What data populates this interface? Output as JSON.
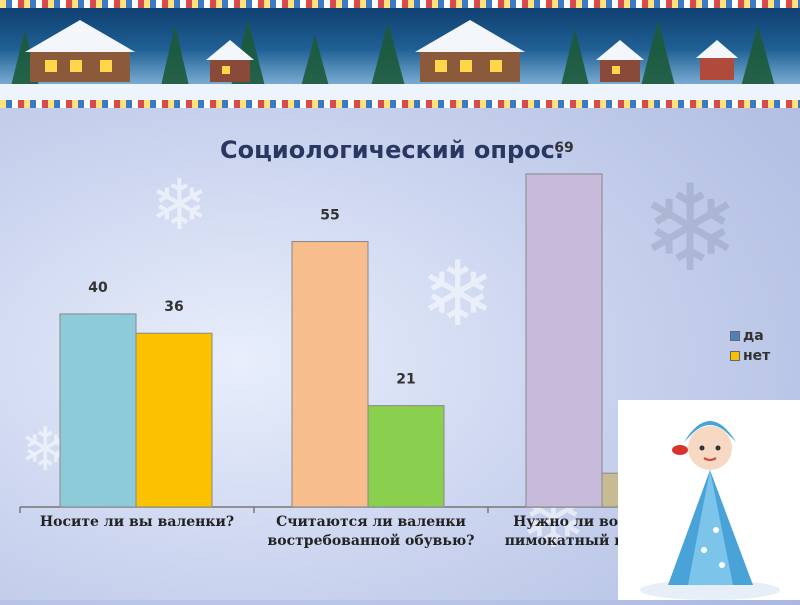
{
  "chart_data": {
    "type": "bar",
    "title": "Социологический опрос.",
    "categories": [
      [
        "Носите ли вы валенки?"
      ],
      [
        "Считаются ли валенки",
        "востребованной обувью?"
      ],
      [
        "Нужно ли возрождать",
        "пимокатный промысел?"
      ]
    ],
    "series": [
      {
        "name": "да",
        "legend_color": "#4f81bd",
        "bar_colors": [
          "#8ecbd8",
          "#f7bd8c",
          "#c8bada"
        ],
        "values": [
          40,
          55,
          69
        ]
      },
      {
        "name": "нет",
        "legend_color": "#f5c200",
        "bar_colors": [
          "#fcc100",
          "#8bcf4e",
          "#c6bb92"
        ],
        "values": [
          36,
          21,
          7
        ]
      }
    ],
    "ylim": [
      0,
      75
    ],
    "grid": false,
    "legend_position": "right"
  }
}
